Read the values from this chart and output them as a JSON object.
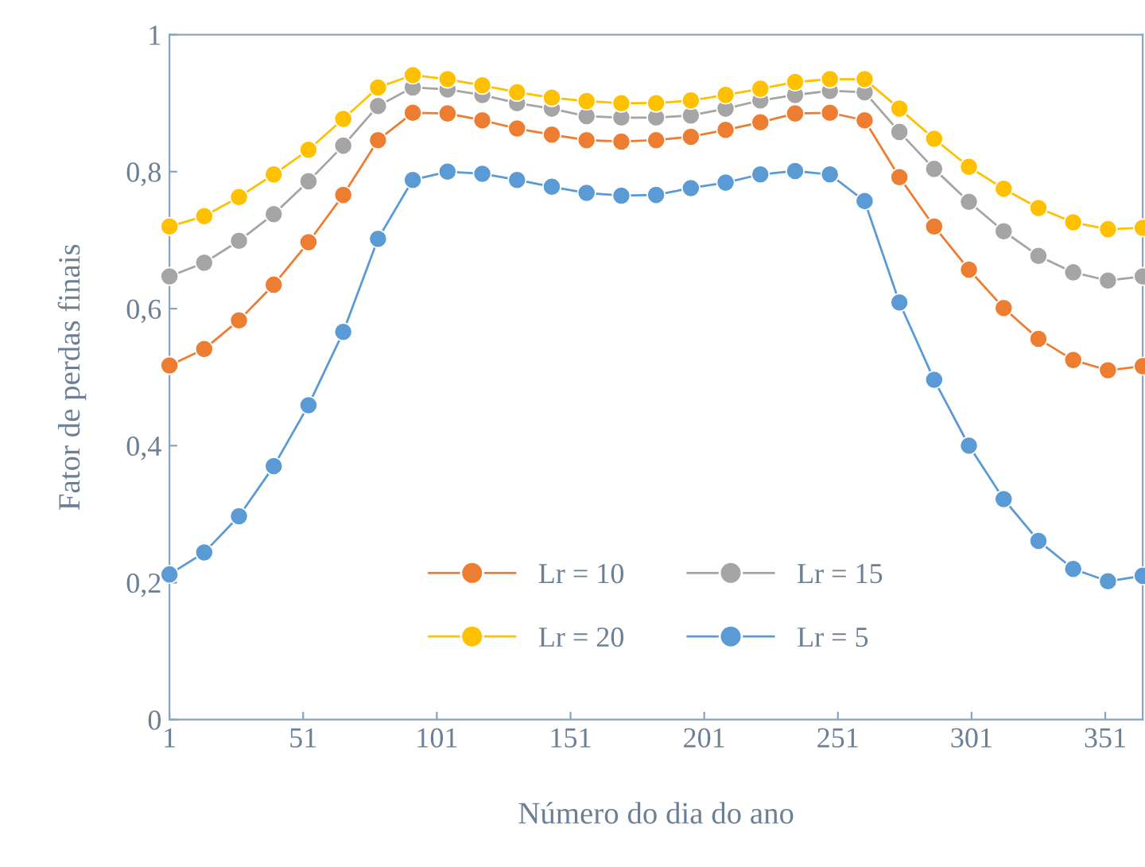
{
  "chart_data": {
    "type": "line",
    "xlabel": "Número do dia do ano",
    "ylabel": "Fator de perdas finais",
    "x": [
      1,
      14,
      27,
      40,
      53,
      66,
      79,
      92,
      105,
      118,
      131,
      144,
      157,
      170,
      183,
      196,
      209,
      222,
      235,
      248,
      261,
      274,
      287,
      300,
      313,
      326,
      339,
      352,
      365
    ],
    "xlim": [
      1,
      365
    ],
    "xticks": [
      1,
      51,
      101,
      151,
      201,
      251,
      301,
      351
    ],
    "ylim": [
      0,
      1
    ],
    "yticks": [
      {
        "value": 0,
        "label": "0"
      },
      {
        "value": 0.2,
        "label": "0,2"
      },
      {
        "value": 0.4,
        "label": "0,4"
      },
      {
        "value": 0.6,
        "label": "0,6"
      },
      {
        "value": 0.8,
        "label": "0,8"
      },
      {
        "value": 1,
        "label": "1"
      }
    ],
    "grid": false,
    "legend": "bottom",
    "marker": "circle",
    "line_style": "solid",
    "series": [
      {
        "name": "Lr = 10",
        "color": "#ed7d31",
        "values": [
          0.517,
          0.541,
          0.583,
          0.635,
          0.697,
          0.766,
          0.846,
          0.886,
          0.885,
          0.875,
          0.863,
          0.854,
          0.846,
          0.844,
          0.846,
          0.851,
          0.861,
          0.872,
          0.885,
          0.886,
          0.875,
          0.792,
          0.72,
          0.657,
          0.601,
          0.556,
          0.525,
          0.51,
          0.516
        ]
      },
      {
        "name": "Lr = 15",
        "color": "#a5a5a5",
        "values": [
          0.647,
          0.667,
          0.699,
          0.738,
          0.786,
          0.838,
          0.896,
          0.923,
          0.92,
          0.912,
          0.9,
          0.892,
          0.881,
          0.879,
          0.879,
          0.882,
          0.892,
          0.904,
          0.912,
          0.918,
          0.916,
          0.858,
          0.804,
          0.756,
          0.713,
          0.677,
          0.653,
          0.641,
          0.647
        ]
      },
      {
        "name": "Lr = 20",
        "color": "#ffc000",
        "values": [
          0.72,
          0.735,
          0.763,
          0.796,
          0.832,
          0.877,
          0.923,
          0.941,
          0.935,
          0.926,
          0.916,
          0.908,
          0.903,
          0.9,
          0.9,
          0.904,
          0.912,
          0.921,
          0.931,
          0.935,
          0.935,
          0.892,
          0.848,
          0.807,
          0.775,
          0.747,
          0.726,
          0.716,
          0.718
        ]
      },
      {
        "name": "Lr = 5",
        "color": "#5b9bd5",
        "values": [
          0.212,
          0.244,
          0.297,
          0.37,
          0.459,
          0.566,
          0.702,
          0.788,
          0.8,
          0.797,
          0.788,
          0.778,
          0.769,
          0.765,
          0.766,
          0.776,
          0.784,
          0.796,
          0.801,
          0.796,
          0.757,
          0.609,
          0.496,
          0.4,
          0.322,
          0.261,
          0.22,
          0.202,
          0.21
        ]
      }
    ]
  }
}
